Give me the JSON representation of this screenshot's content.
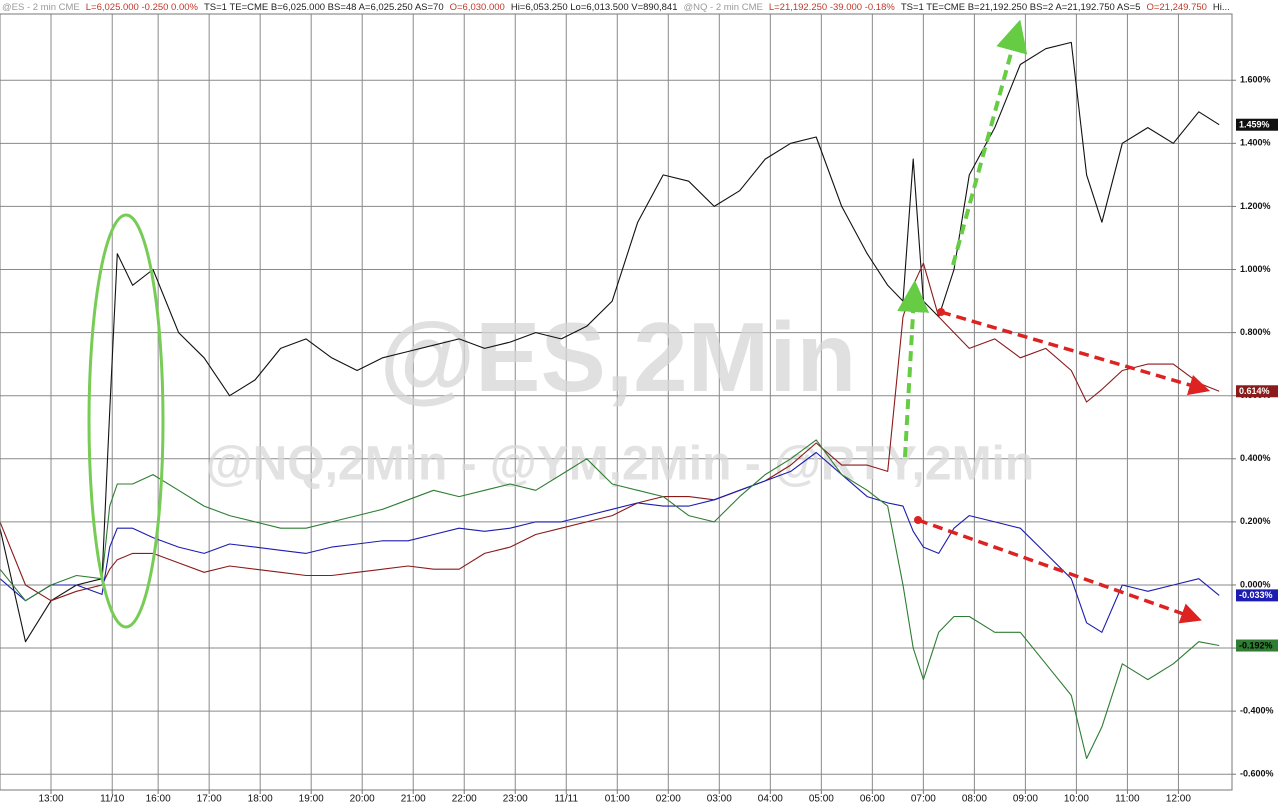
{
  "chart_data": {
    "type": "line",
    "header": [
      {
        "text": "@ES - 2 min  CME",
        "color": "#9a9a9a"
      },
      {
        "text": "L=6,025.000  -0.250  0.00%",
        "color": "#c0392b"
      },
      {
        "text": "TS=1  TE=CME  B=6,025.000  BS=48  A=6,025.250  AS=70",
        "color": "#222222"
      },
      {
        "text": "O=6,030.000",
        "color": "#c0392b"
      },
      {
        "text": "Hi=6,053.250  Lo=6,013.500  V=890,841",
        "color": "#222222"
      },
      {
        "text": "@NQ - 2 min  CME",
        "color": "#9a9a9a"
      },
      {
        "text": "L=21,192.250  -39.000  -0.18%",
        "color": "#c0392b"
      },
      {
        "text": "TS=1  TE=CME  B=21,192.250  BS=2  A=21,192.750  AS=5",
        "color": "#222222"
      },
      {
        "text": "O=21,249.750",
        "color": "#c0392b"
      },
      {
        "text": "Hi...",
        "color": "#222222"
      }
    ],
    "watermark_main": "@ES,2Min",
    "watermark_sub": "@NQ,2Min - @YM,2Min - @RTY,2Min",
    "x": [
      0,
      0.5,
      1,
      1.5,
      2,
      2.15,
      2.3,
      2.6,
      3,
      3.5,
      4,
      4.5,
      5,
      5.5,
      6,
      6.5,
      7,
      7.5,
      8,
      8.5,
      9,
      9.5,
      10,
      10.5,
      11,
      11.5,
      12,
      12.5,
      13,
      13.5,
      14,
      14.5,
      15,
      15.5,
      16,
      16.5,
      17,
      17.4,
      17.7,
      17.9,
      18.1,
      18.4,
      18.7,
      19,
      19.5,
      20,
      20.5,
      21,
      21.3,
      21.6,
      22,
      22.5,
      23,
      23.5,
      23.9
    ],
    "xlim": [
      0,
      24.15
    ],
    "xticks": [
      {
        "value": 1,
        "label": "13:00"
      },
      {
        "value": 2.2,
        "label": "11/10"
      },
      {
        "value": 3.1,
        "label": "16:00"
      },
      {
        "value": 4.1,
        "label": "17:00"
      },
      {
        "value": 5.1,
        "label": "18:00"
      },
      {
        "value": 6.1,
        "label": "19:00"
      },
      {
        "value": 7.1,
        "label": "20:00"
      },
      {
        "value": 8.1,
        "label": "21:00"
      },
      {
        "value": 9.1,
        "label": "22:00"
      },
      {
        "value": 10.1,
        "label": "23:00"
      },
      {
        "value": 11.1,
        "label": "11/11"
      },
      {
        "value": 12.1,
        "label": "01:00"
      },
      {
        "value": 13.1,
        "label": "02:00"
      },
      {
        "value": 14.1,
        "label": "03:00"
      },
      {
        "value": 15.1,
        "label": "04:00"
      },
      {
        "value": 16.1,
        "label": "05:00"
      },
      {
        "value": 17.1,
        "label": "06:00"
      },
      {
        "value": 18.1,
        "label": "07:00"
      },
      {
        "value": 19.1,
        "label": "08:00"
      },
      {
        "value": 20.1,
        "label": "09:00"
      },
      {
        "value": 21.1,
        "label": "10:00"
      },
      {
        "value": 22.1,
        "label": "11:00"
      },
      {
        "value": 23.1,
        "label": "12:00"
      }
    ],
    "ylim": [
      -0.65,
      1.81
    ],
    "yticks": [
      {
        "value": 1.6,
        "label": "1.600%"
      },
      {
        "value": 1.4,
        "label": "1.400%"
      },
      {
        "value": 1.2,
        "label": "1.200%"
      },
      {
        "value": 1.0,
        "label": "1.000%"
      },
      {
        "value": 0.8,
        "label": "0.800%"
      },
      {
        "value": 0.6,
        "label": "0.600%"
      },
      {
        "value": 0.4,
        "label": "0.400%"
      },
      {
        "value": 0.2,
        "label": "0.200%"
      },
      {
        "value": 0,
        "label": "0.000%"
      },
      {
        "value": -0.2,
        "label": "-0.200%"
      },
      {
        "value": -0.4,
        "label": "-0.400%"
      },
      {
        "value": -0.6,
        "label": "-0.600%"
      }
    ],
    "grid": true,
    "series": [
      {
        "color": "#111111",
        "tag_text": "#ffffff",
        "end_label": "1.459%",
        "values": [
          0.18,
          -0.18,
          -0.05,
          0.0,
          0.02,
          0.55,
          1.05,
          0.95,
          1.0,
          0.8,
          0.72,
          0.6,
          0.65,
          0.75,
          0.78,
          0.72,
          0.68,
          0.72,
          0.74,
          0.76,
          0.78,
          0.75,
          0.77,
          0.8,
          0.78,
          0.82,
          0.9,
          1.15,
          1.3,
          1.28,
          1.2,
          1.25,
          1.35,
          1.4,
          1.42,
          1.2,
          1.05,
          0.95,
          0.9,
          1.35,
          0.9,
          0.85,
          1.0,
          1.3,
          1.45,
          1.65,
          1.7,
          1.72,
          1.3,
          1.15,
          1.4,
          1.45,
          1.4,
          1.5,
          1.459
        ]
      },
      {
        "color": "#8b1a1a",
        "tag_text": "#ffffff",
        "end_label": "0.614%",
        "values": [
          0.2,
          0.0,
          -0.05,
          -0.02,
          0.0,
          0.05,
          0.08,
          0.1,
          0.1,
          0.07,
          0.04,
          0.06,
          0.05,
          0.04,
          0.03,
          0.03,
          0.04,
          0.05,
          0.06,
          0.05,
          0.05,
          0.1,
          0.12,
          0.16,
          0.18,
          0.2,
          0.22,
          0.26,
          0.28,
          0.28,
          0.27,
          0.3,
          0.33,
          0.38,
          0.45,
          0.38,
          0.38,
          0.36,
          0.85,
          0.95,
          1.02,
          0.85,
          0.8,
          0.75,
          0.78,
          0.72,
          0.75,
          0.68,
          0.58,
          0.62,
          0.68,
          0.7,
          0.7,
          0.64,
          0.614
        ]
      },
      {
        "color": "#1c1cb0",
        "tag_text": "#ffffff",
        "end_label": "-0.033%",
        "values": [
          0.02,
          -0.05,
          0.0,
          0.0,
          -0.03,
          0.12,
          0.18,
          0.18,
          0.15,
          0.12,
          0.1,
          0.13,
          0.12,
          0.11,
          0.1,
          0.12,
          0.13,
          0.14,
          0.14,
          0.16,
          0.18,
          0.17,
          0.18,
          0.2,
          0.2,
          0.22,
          0.24,
          0.26,
          0.25,
          0.25,
          0.27,
          0.3,
          0.33,
          0.36,
          0.42,
          0.35,
          0.28,
          0.26,
          0.25,
          0.17,
          0.12,
          0.1,
          0.18,
          0.22,
          0.2,
          0.18,
          0.1,
          0.02,
          -0.12,
          -0.15,
          0.0,
          -0.02,
          0.0,
          0.02,
          -0.033
        ]
      },
      {
        "color": "#2e7d32",
        "tag_text": "#000000",
        "end_label": "-0.192%",
        "values": [
          0.05,
          -0.05,
          0.0,
          0.03,
          0.02,
          0.25,
          0.32,
          0.32,
          0.35,
          0.3,
          0.25,
          0.22,
          0.2,
          0.18,
          0.18,
          0.2,
          0.22,
          0.24,
          0.27,
          0.3,
          0.28,
          0.3,
          0.32,
          0.3,
          0.35,
          0.4,
          0.32,
          0.3,
          0.28,
          0.22,
          0.2,
          0.28,
          0.35,
          0.4,
          0.46,
          0.35,
          0.3,
          0.25,
          0.0,
          -0.2,
          -0.3,
          -0.15,
          -0.1,
          -0.1,
          -0.15,
          -0.15,
          -0.25,
          -0.35,
          -0.55,
          -0.45,
          -0.25,
          -0.3,
          -0.25,
          -0.18,
          -0.192
        ]
      }
    ]
  }
}
